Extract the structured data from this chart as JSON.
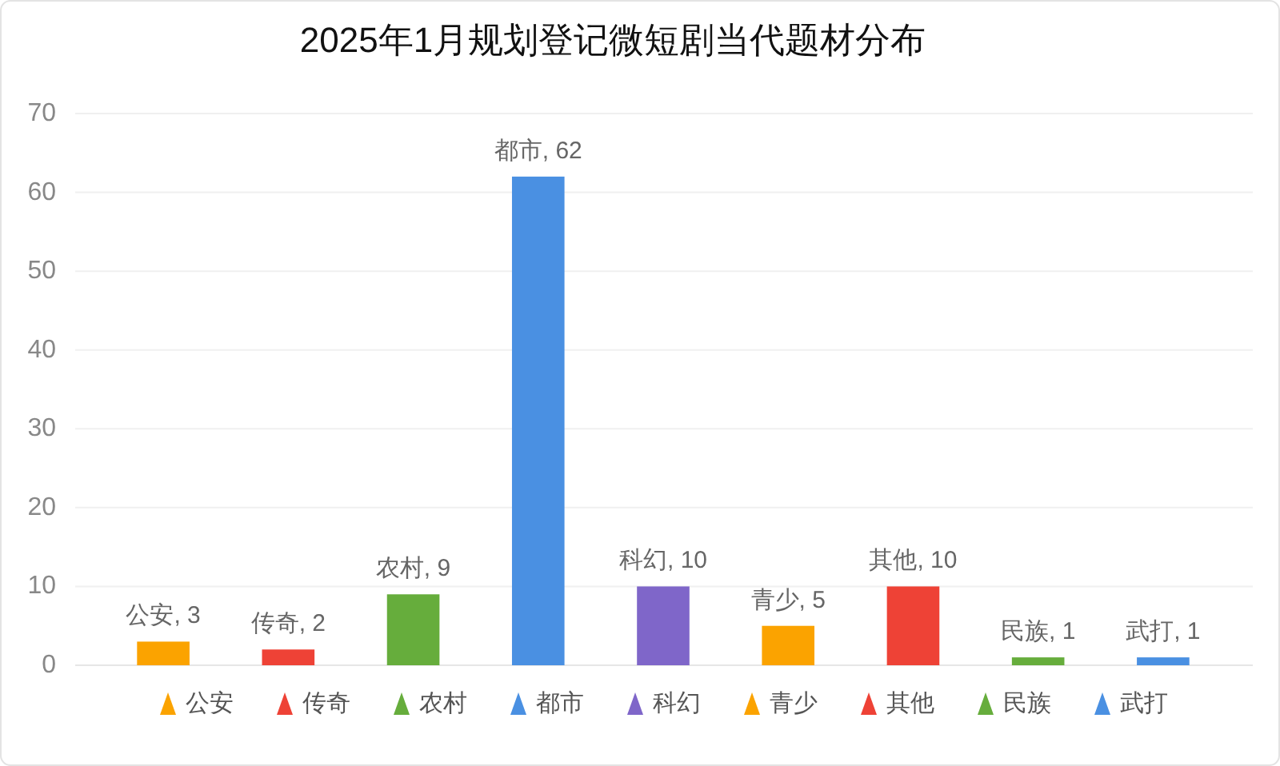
{
  "chart_data": {
    "type": "bar",
    "title": "2025年1月规划登记微短剧当代题材分布",
    "categories": [
      null,
      null,
      null,
      null,
      null,
      null,
      null,
      null,
      null
    ],
    "series": [
      {
        "name": "公安",
        "color": "#fba300",
        "values": [
          3,
          null,
          null,
          null,
          null,
          null,
          null,
          null,
          null
        ],
        "value_labels": [
          "公安, 3",
          null,
          null,
          null,
          null,
          null,
          null,
          null,
          null
        ]
      },
      {
        "name": "传奇",
        "color": "#ee4236",
        "values": [
          null,
          2,
          null,
          null,
          null,
          null,
          null,
          null,
          null
        ],
        "value_labels": [
          null,
          "传奇, 2",
          null,
          null,
          null,
          null,
          null,
          null,
          null
        ]
      },
      {
        "name": "农村",
        "color": "#66ad3c",
        "values": [
          null,
          null,
          9,
          null,
          null,
          null,
          null,
          null,
          null
        ],
        "value_labels": [
          null,
          null,
          "农村, 9",
          null,
          null,
          null,
          null,
          null,
          null
        ]
      },
      {
        "name": "都市",
        "color": "#4a90e2",
        "values": [
          null,
          null,
          null,
          62,
          null,
          null,
          null,
          null,
          null
        ],
        "value_labels": [
          null,
          null,
          null,
          "都市, 62",
          null,
          null,
          null,
          null,
          null
        ]
      },
      {
        "name": "科幻",
        "color": "#7f66c9",
        "values": [
          null,
          null,
          null,
          null,
          10,
          null,
          null,
          null,
          null
        ],
        "value_labels": [
          null,
          null,
          null,
          null,
          "科幻, 10",
          null,
          null,
          null,
          null
        ]
      },
      {
        "name": "青少",
        "color": "#fba300",
        "values": [
          null,
          null,
          null,
          null,
          null,
          5,
          null,
          null,
          null
        ],
        "value_labels": [
          null,
          null,
          null,
          null,
          null,
          "青少, 5",
          null,
          null,
          null
        ]
      },
      {
        "name": "其他",
        "color": "#ee4236",
        "values": [
          null,
          null,
          null,
          null,
          null,
          null,
          10,
          null,
          null
        ],
        "value_labels": [
          null,
          null,
          null,
          null,
          null,
          null,
          "其他, 10",
          null,
          null
        ]
      },
      {
        "name": "民族",
        "color": "#66ad3c",
        "values": [
          null,
          null,
          null,
          null,
          null,
          null,
          null,
          1,
          null
        ],
        "value_labels": [
          null,
          null,
          null,
          null,
          null,
          null,
          null,
          "民族, 1",
          null
        ]
      },
      {
        "name": "武打",
        "color": "#4a90e2",
        "values": [
          null,
          null,
          null,
          null,
          null,
          null,
          null,
          null,
          1
        ],
        "value_labels": [
          null,
          null,
          null,
          null,
          null,
          null,
          null,
          null,
          "武打, 1"
        ]
      }
    ],
    "ylim": [
      0,
      70
    ],
    "yticks": [
      0,
      10,
      20,
      30,
      40,
      50,
      60,
      70
    ],
    "grid": "y",
    "legend": "bottom",
    "tick_labels": "y"
  }
}
